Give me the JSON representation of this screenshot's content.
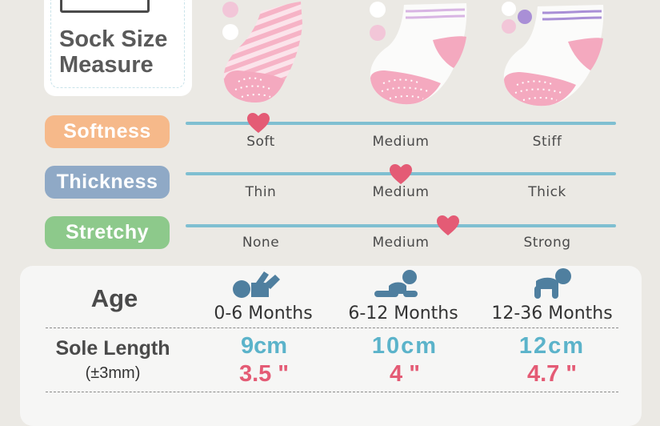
{
  "title": {
    "line1": "Sock Size",
    "line2": "Measure"
  },
  "colors": {
    "background": "#ebe9e4",
    "softness_pill": "#f6b98a",
    "thickness_pill": "#8fa9c6",
    "stretchy_pill": "#8dc98b",
    "track": "#7fbfd1",
    "heart": "#e45b75",
    "cm": "#5bb3ca",
    "inch": "#e45b75",
    "baby_icon": "#4f7f9f"
  },
  "attributes": [
    {
      "label": "Softness",
      "scale": [
        "Soft",
        "Medium",
        "Stiff"
      ],
      "level": 0.17
    },
    {
      "label": "Thickness",
      "scale": [
        "Thin",
        "Medium",
        "Thick"
      ],
      "level": 0.5
    },
    {
      "label": "Stretchy",
      "scale": [
        "None",
        "Medium",
        "Strong"
      ],
      "level": 0.61
    }
  ],
  "table": {
    "age_header": "Age",
    "sole_header": "Sole Length",
    "sole_sub": "(±3mm)",
    "columns": [
      {
        "age": "0-6 Months",
        "cm": "9cm",
        "inch": "3.5 \"",
        "icon": "lying-baby-icon"
      },
      {
        "age": "6-12 Months",
        "cm": "10cm",
        "inch": "4 \"",
        "icon": "crawling-baby-low-icon"
      },
      {
        "age": "12-36 Months",
        "cm": "12cm",
        "inch": "4.7 \"",
        "icon": "crawling-baby-icon"
      }
    ]
  }
}
